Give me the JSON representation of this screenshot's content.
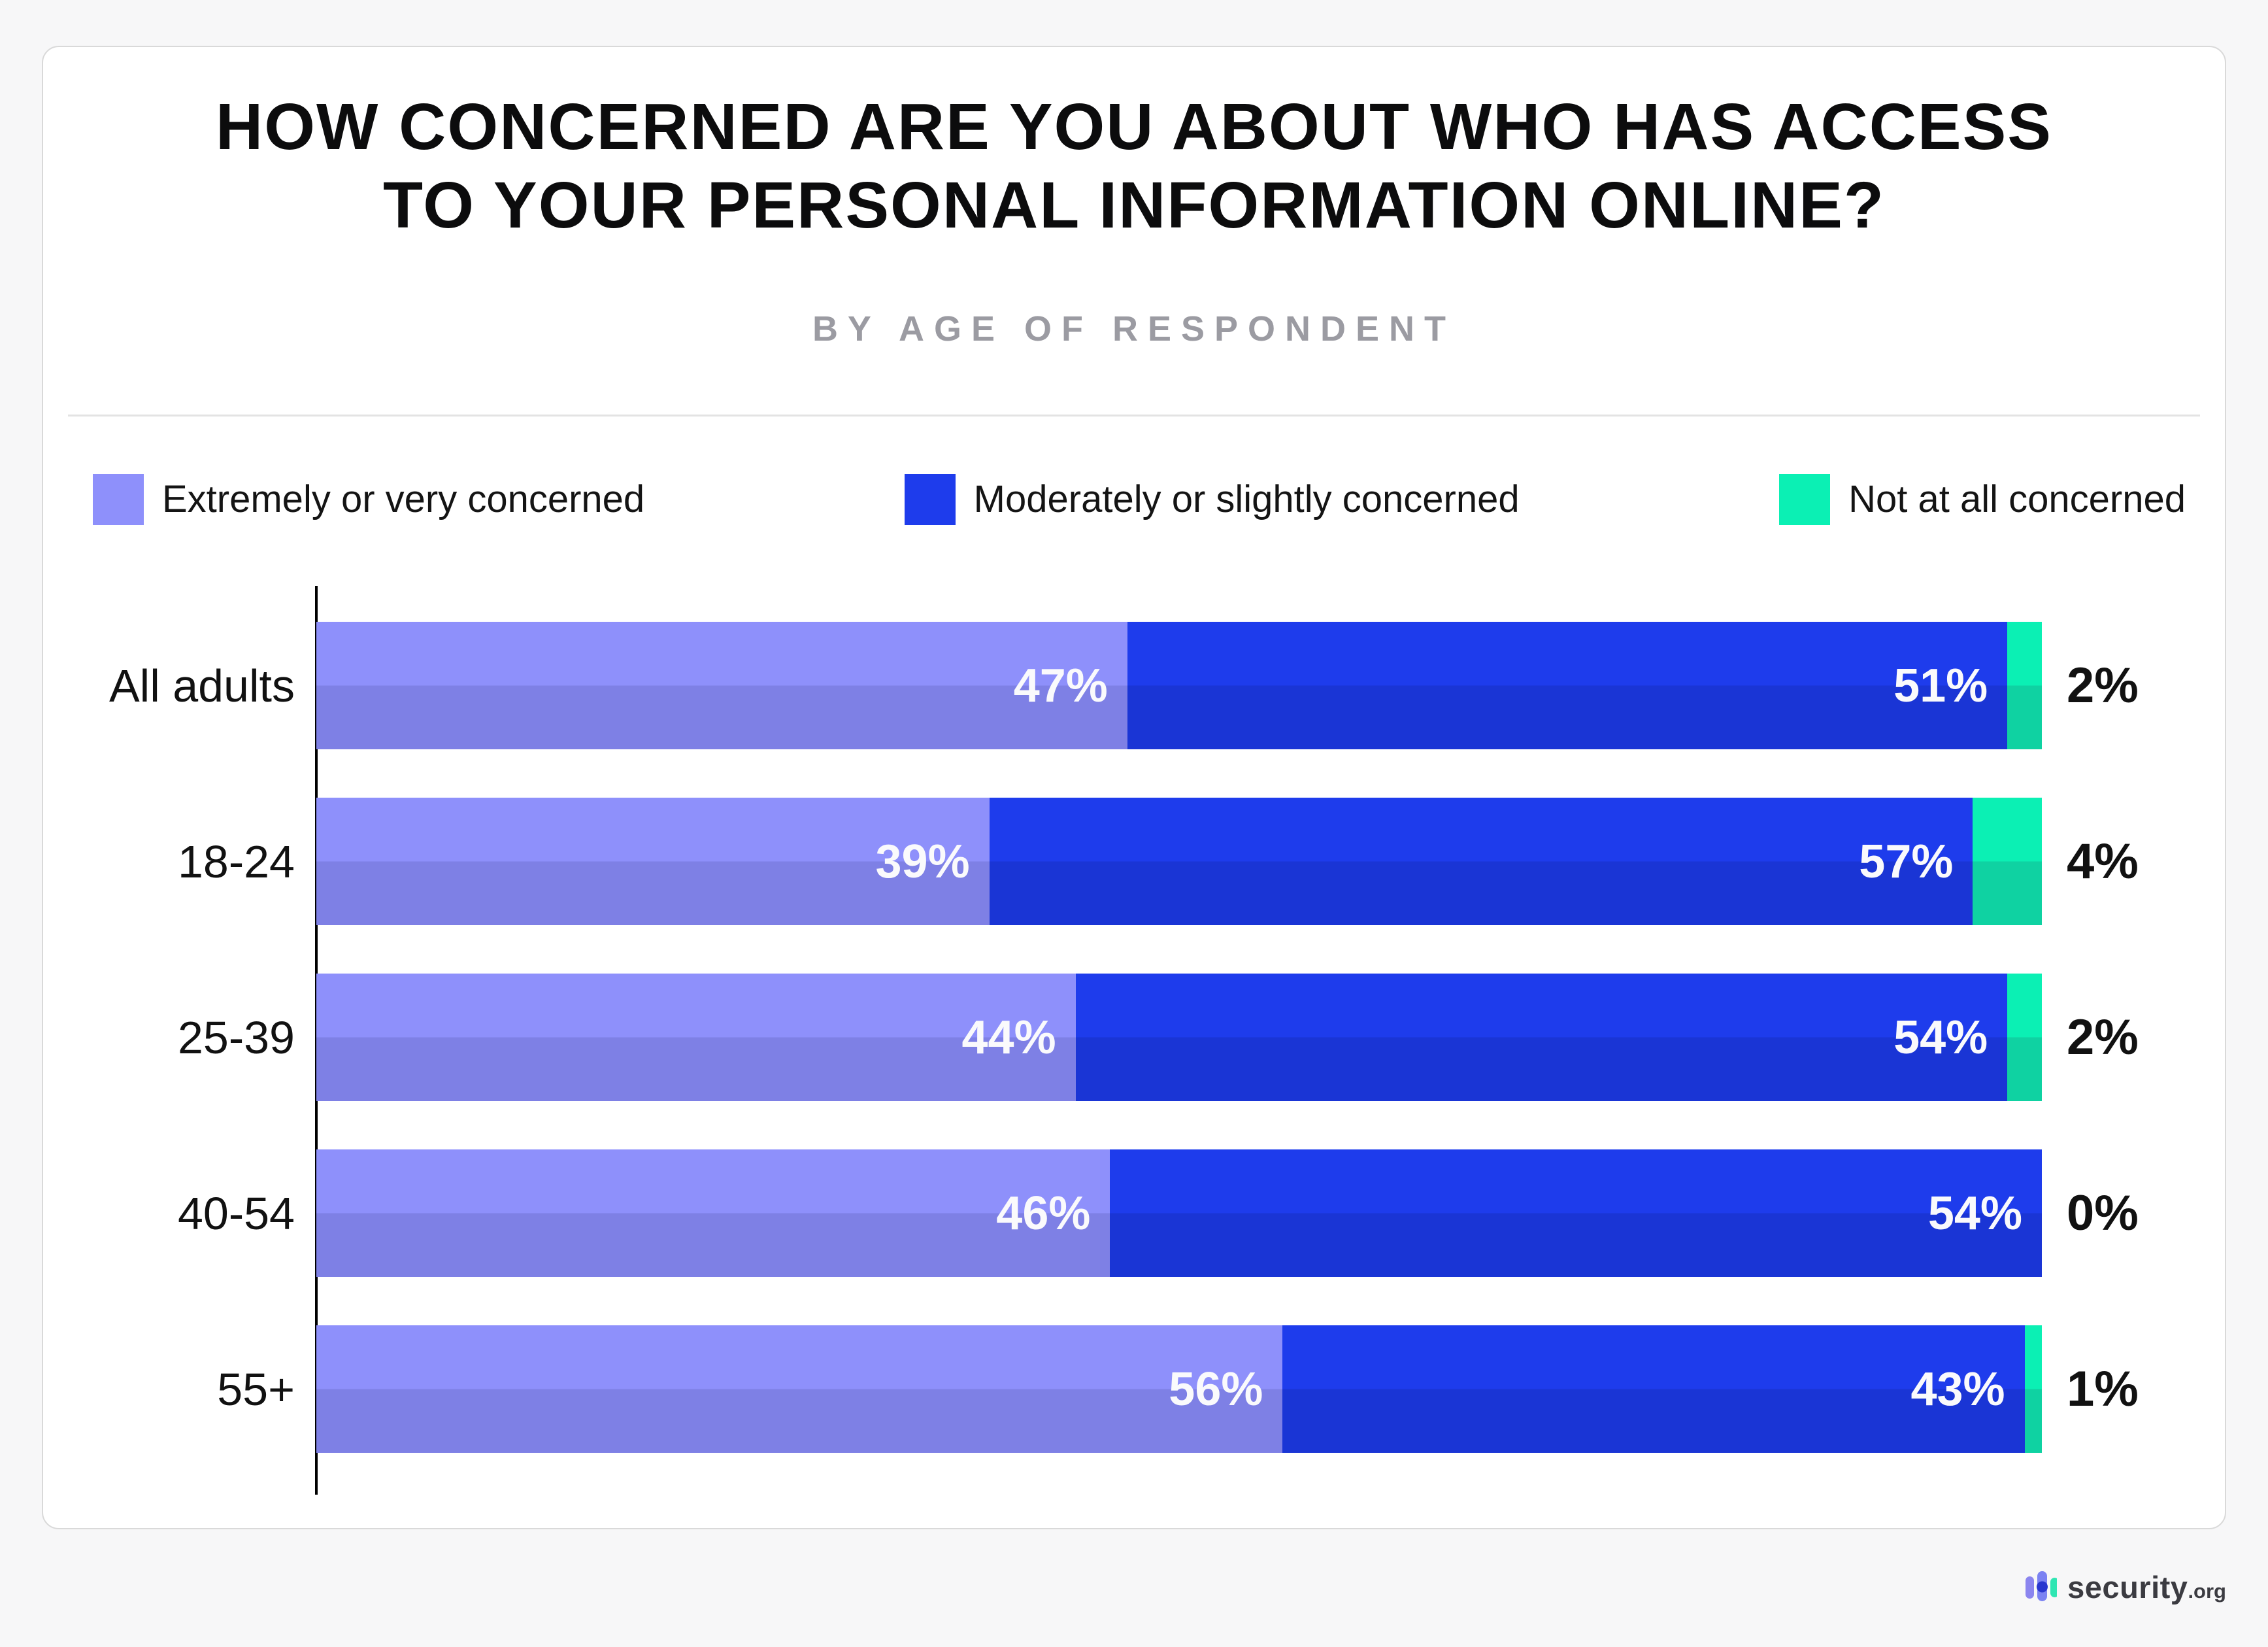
{
  "page": {
    "background": "#f7f7f8",
    "card_background": "#ffffff"
  },
  "header": {
    "title_lines": [
      "HOW CONCERNED ARE YOU ABOUT WHO HAS ACCESS",
      "TO YOUR PERSONAL INFORMATION ONLINE?"
    ],
    "subtitle": "BY AGE OF RESPONDENT"
  },
  "chart_data": {
    "type": "bar",
    "orientation": "horizontal",
    "stacked": true,
    "categories": [
      "All adults",
      "18-24",
      "25-39",
      "40-54",
      "55+"
    ],
    "series": [
      {
        "name": "Extremely or very concerned",
        "color_top": "#8e90fb",
        "color_bottom": "#7e80e5",
        "values": [
          47,
          39,
          44,
          46,
          56
        ],
        "labels_inside": true
      },
      {
        "name": "Moderately or slightly concerned",
        "color_top": "#1e3cec",
        "color_bottom": "#1a35d5",
        "values": [
          51,
          57,
          54,
          54,
          43
        ],
        "labels_inside": true
      },
      {
        "name": "Not at all concerned",
        "color_top": "#0bf0b4",
        "color_bottom": "#0fd2a2",
        "values": [
          2,
          4,
          2,
          0,
          1
        ],
        "labels_inside": false
      }
    ],
    "value_suffix": "%",
    "xlim": [
      0,
      100
    ],
    "grid": false,
    "legend_position": "top",
    "outside_labels": [
      "2%",
      "4%",
      "2%",
      "0%",
      "1%"
    ]
  },
  "footer": {
    "brand": "security",
    "brand_suffix": ".org"
  }
}
